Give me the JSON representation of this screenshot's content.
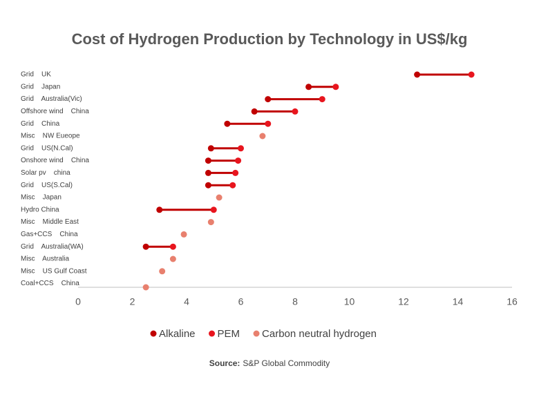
{
  "chart_data": {
    "type": "dumbbell",
    "title": "Cost of Hydrogen Production by Technology in US$/kg",
    "categories": [
      "Grid    UK",
      "Grid    Japan",
      "Grid    Australia(Vic)",
      "Offshore wind    China",
      "Grid    China",
      "Misc    NW Eueope",
      "Grid    US(N.Cal)",
      "Onshore wind    China",
      "Solar pv    china",
      "Grid    US(S.Cal)",
      "Misc    Japan",
      "Hydro China",
      "Misc    Middle East",
      "Gas+CCS    China",
      "Grid    Australia(WA)",
      "Misc    Australia",
      "Misc    US Gulf Coast",
      "Coal+CCS    China"
    ],
    "series": [
      {
        "name": "Alkaline",
        "color": "#c00000",
        "values": [
          12.5,
          8.5,
          7,
          6.5,
          5.5,
          null,
          4.9,
          4.8,
          4.8,
          4.8,
          null,
          3,
          null,
          null,
          2.5,
          null,
          null,
          null
        ]
      },
      {
        "name": "PEM",
        "color": "#e8151e",
        "values": [
          14.5,
          9.5,
          9,
          8,
          7,
          null,
          6,
          5.9,
          5.8,
          5.7,
          null,
          5,
          null,
          null,
          3.5,
          null,
          null,
          null
        ]
      },
      {
        "name": "Carbon neutral hydrogen",
        "color": "#e8806e",
        "values": [
          null,
          null,
          null,
          null,
          null,
          6.8,
          null,
          null,
          null,
          null,
          5.2,
          null,
          4.9,
          3.9,
          null,
          3.5,
          3.1,
          2.5
        ]
      }
    ],
    "connector_color": "#c00000",
    "xlim": [
      0,
      16
    ],
    "xticks": [
      0,
      2,
      4,
      6,
      8,
      10,
      12,
      14,
      16
    ],
    "source": {
      "label": "Source:",
      "text": "S&P Global Commodity"
    }
  }
}
